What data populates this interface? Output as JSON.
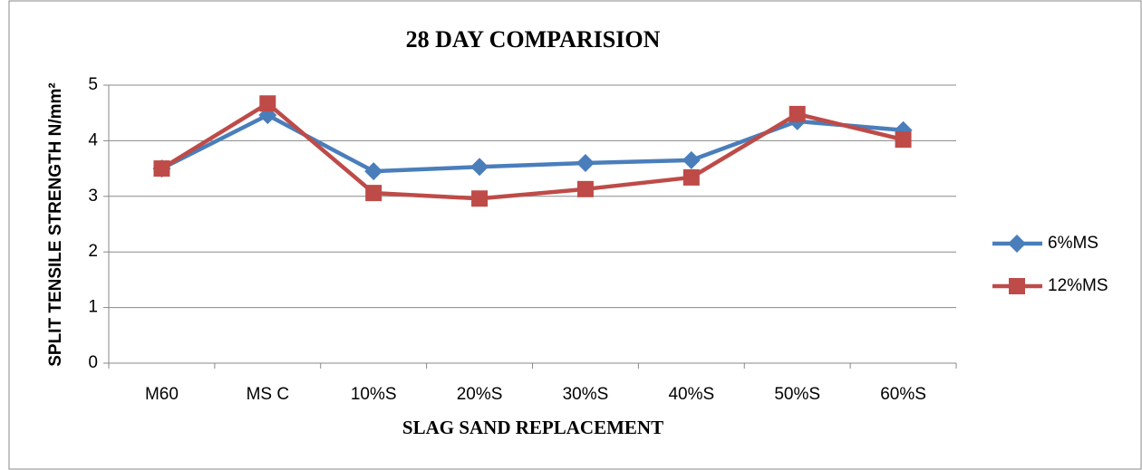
{
  "chart_data": {
    "type": "line",
    "title": "28 DAY COMPARISION",
    "x_label": "SLAG SAND REPLACEMENT",
    "y_label": "SPLIT TENSILE STRENGTH N/mm²",
    "categories": [
      "M60",
      "MS C",
      "10%S",
      "20%S",
      "30%S",
      "40%S",
      "50%S",
      "60%S"
    ],
    "series": [
      {
        "name": "6%MS",
        "color": "#4a7ebb",
        "marker": "diamond",
        "values": [
          3.5,
          4.46,
          3.45,
          3.53,
          3.6,
          3.65,
          4.35,
          4.19
        ]
      },
      {
        "name": "12%MS",
        "color": "#be4b48",
        "marker": "square",
        "values": [
          3.5,
          4.67,
          3.06,
          2.96,
          3.13,
          3.34,
          4.48,
          4.02
        ]
      }
    ],
    "ylim": [
      0,
      5
    ],
    "yticks": [
      0,
      1,
      2,
      3,
      4,
      5
    ],
    "grid": true,
    "legend": "right"
  }
}
